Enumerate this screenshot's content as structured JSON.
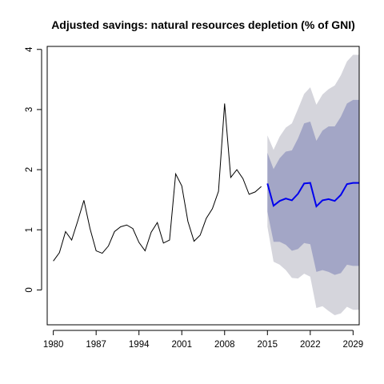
{
  "chart_data": {
    "type": "line",
    "title": "Adjusted savings: natural resources depletion (% of GNI)",
    "xlabel": "",
    "ylabel": "",
    "xlim": [
      1979,
      2030
    ],
    "ylim": [
      -0.58,
      4.05
    ],
    "x_ticks": [
      1980,
      1987,
      1994,
      2001,
      2008,
      2015,
      2022,
      2029
    ],
    "y_ticks": [
      0,
      1,
      2,
      3,
      4
    ],
    "grid": false,
    "legend": "none",
    "colors": {
      "history": "#000000",
      "forecast": "#0000ee",
      "band_80": "#a3a6c6",
      "band_95": "#d5d5dc"
    },
    "series": [
      {
        "role": "history",
        "x": [
          1980,
          1981,
          1982,
          1983,
          1984,
          1985,
          1986,
          1987,
          1988,
          1989,
          1990,
          1991,
          1992,
          1993,
          1994,
          1995,
          1996,
          1997,
          1998,
          1999,
          2000,
          2001,
          2002,
          2003,
          2004,
          2005,
          2006,
          2007,
          2008,
          2009,
          2010,
          2011,
          2012,
          2013,
          2014
        ],
        "values": [
          0.48,
          0.62,
          0.97,
          0.83,
          1.15,
          1.49,
          1.02,
          0.65,
          0.61,
          0.73,
          0.97,
          1.05,
          1.08,
          1.02,
          0.79,
          0.65,
          0.96,
          1.12,
          0.78,
          0.83,
          1.93,
          1.73,
          1.14,
          0.81,
          0.91,
          1.19,
          1.35,
          1.64,
          3.1,
          1.87,
          2.0,
          1.85,
          1.59,
          1.63,
          1.72
        ]
      },
      {
        "role": "forecast",
        "x": [
          2015,
          2016,
          2017,
          2018,
          2019,
          2020,
          2021,
          2022,
          2023,
          2024,
          2025,
          2026,
          2027,
          2028,
          2029,
          2030
        ],
        "values": [
          1.77,
          1.4,
          1.48,
          1.52,
          1.49,
          1.6,
          1.77,
          1.78,
          1.39,
          1.49,
          1.51,
          1.48,
          1.58,
          1.76,
          1.78,
          1.78
        ],
        "lo80": [
          1.3,
          0.8,
          0.8,
          0.75,
          0.65,
          0.68,
          0.78,
          0.76,
          0.3,
          0.33,
          0.3,
          0.25,
          0.28,
          0.42,
          0.4,
          0.4
        ],
        "hi80": [
          2.28,
          2.01,
          2.19,
          2.3,
          2.32,
          2.52,
          2.77,
          2.8,
          2.48,
          2.65,
          2.72,
          2.72,
          2.88,
          3.1,
          3.16,
          3.16
        ],
        "lo95": [
          1.05,
          0.47,
          0.42,
          0.33,
          0.2,
          0.19,
          0.27,
          0.22,
          -0.3,
          -0.27,
          -0.35,
          -0.42,
          -0.39,
          -0.28,
          -0.33,
          -0.33
        ],
        "hi95": [
          2.57,
          2.33,
          2.55,
          2.7,
          2.77,
          3.01,
          3.26,
          3.37,
          3.08,
          3.25,
          3.34,
          3.4,
          3.57,
          3.8,
          3.91,
          3.91
        ]
      }
    ]
  }
}
